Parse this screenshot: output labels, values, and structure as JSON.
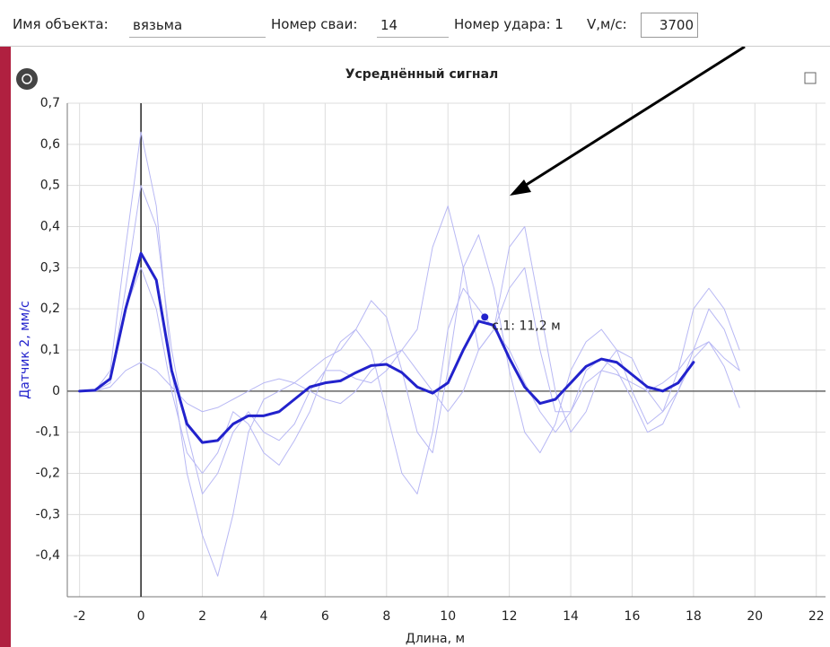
{
  "form": {
    "object_label": "Имя объекта:",
    "object_value": "вязьма",
    "pile_label": "Номер сваи:",
    "pile_value": "14",
    "strike_label": "Номер удара: 1",
    "speed_label": "V,м/с:",
    "speed_value": "3700"
  },
  "chart_data": {
    "type": "line",
    "title": "Усреднённый сигнал",
    "xlabel": "Длина, м",
    "ylabel": "Датчик 2, мм/с",
    "x": [
      -2,
      -1.5,
      -1,
      -0.5,
      0,
      0.5,
      1,
      1.5,
      2,
      2.5,
      3,
      3.5,
      4,
      4.5,
      5,
      5.5,
      6,
      6.5,
      7,
      7.5,
      8,
      8.5,
      9,
      9.5,
      10,
      10.5,
      11,
      11.5,
      12,
      12.5,
      13,
      13.5,
      14,
      14.5,
      15,
      15.5,
      16,
      16.5,
      17,
      17.5,
      18,
      18.5,
      19,
      19.5
    ],
    "series": [
      {
        "color": "#b8b8f4",
        "width": 1,
        "values": [
          0,
          0,
          0.05,
          0.35,
          0.63,
          0.45,
          0.05,
          -0.2,
          -0.35,
          -0.45,
          -0.3,
          -0.1,
          -0.02,
          0,
          0.02,
          0.05,
          0.08,
          0.1,
          0.15,
          0.22,
          0.18,
          0.05,
          -0.1,
          -0.15,
          0.05,
          0.3,
          0.38,
          0.25,
          0.05,
          -0.1,
          -0.15,
          -0.08,
          0.05,
          0.12,
          0.15,
          0.1,
          0,
          -0.08,
          -0.05,
          0.05,
          0.2,
          0.25,
          0.2,
          0.1
        ]
      },
      {
        "color": "#b8b8f4",
        "width": 1,
        "values": [
          0,
          0,
          0.02,
          0.25,
          0.5,
          0.4,
          0.1,
          -0.1,
          -0.25,
          -0.2,
          -0.1,
          -0.05,
          -0.1,
          -0.12,
          -0.08,
          0,
          0.05,
          0.05,
          0.03,
          0.02,
          0.05,
          0.1,
          0.15,
          0.35,
          0.45,
          0.3,
          0.1,
          0.15,
          0.35,
          0.4,
          0.2,
          0,
          -0.1,
          -0.05,
          0.05,
          0.1,
          0.08,
          0,
          -0.05,
          0,
          0.1,
          0.2,
          0.15,
          0.05
        ]
      },
      {
        "color": "#b8b8f4",
        "width": 1,
        "values": [
          0,
          0,
          0.01,
          0.05,
          0.07,
          0.05,
          0.01,
          -0.03,
          -0.05,
          -0.04,
          -0.02,
          0,
          0.02,
          0.03,
          0.02,
          0,
          -0.02,
          -0.03,
          0,
          0.05,
          0.08,
          0.1,
          0.05,
          0,
          -0.05,
          0,
          0.1,
          0.15,
          0.1,
          0.02,
          -0.05,
          -0.1,
          -0.05,
          0.02,
          0.05,
          0.04,
          0.02,
          0,
          0.02,
          0.05,
          0.1,
          0.12,
          0.08,
          0.05
        ]
      },
      {
        "color": "#b8b8f4",
        "width": 1,
        "values": [
          0,
          0,
          0.03,
          0.2,
          0.3,
          0.2,
          0,
          -0.15,
          -0.2,
          -0.15,
          -0.05,
          -0.08,
          -0.15,
          -0.18,
          -0.12,
          -0.05,
          0.05,
          0.12,
          0.15,
          0.1,
          -0.05,
          -0.2,
          -0.25,
          -0.1,
          0.15,
          0.25,
          0.2,
          0.15,
          0.25,
          0.3,
          0.1,
          -0.05,
          -0.05,
          0.05,
          0.08,
          0.05,
          -0.02,
          -0.1,
          -0.08,
          0,
          0.08,
          0.12,
          0.06,
          -0.04
        ]
      },
      {
        "color": "#2222cc",
        "width": 3,
        "values": [
          0,
          0.002,
          0.03,
          0.2,
          0.335,
          0.27,
          0.05,
          -0.08,
          -0.125,
          -0.12,
          -0.08,
          -0.06,
          -0.06,
          -0.05,
          -0.02,
          0.01,
          0.02,
          0.025,
          0.045,
          0.062,
          0.065,
          0.045,
          0.01,
          -0.005,
          0.02,
          0.1,
          0.17,
          0.16,
          0.08,
          0.01,
          -0.03,
          -0.02,
          0.02,
          0.06,
          0.078,
          0.07,
          0.04,
          0.01,
          0,
          0.02,
          0.07,
          null,
          null,
          null
        ]
      }
    ],
    "annotation": {
      "text": "с.1: 11,2 м",
      "x": 11.2,
      "y": 0.18
    },
    "xlim": [
      -2.4,
      22.3
    ],
    "xticks": [
      -2,
      0,
      2,
      4,
      6,
      8,
      10,
      12,
      14,
      16,
      18,
      20,
      22
    ],
    "ylim": [
      -0.5,
      0.7
    ],
    "yticks": [
      {
        "value": -0.4,
        "label": "-0,4"
      },
      {
        "value": -0.3,
        "label": "-0,3"
      },
      {
        "value": -0.2,
        "label": "-0,2"
      },
      {
        "value": -0.1,
        "label": "-0,1"
      },
      0,
      {
        "value": 0.1,
        "label": "0,1"
      },
      {
        "value": 0.2,
        "label": "0,2"
      },
      {
        "value": 0.3,
        "label": "0,3"
      },
      {
        "value": 0.4,
        "label": "0,4"
      },
      {
        "value": 0.5,
        "label": "0,5"
      },
      {
        "value": 0.6,
        "label": "0,6"
      },
      {
        "value": 0.7,
        "label": "0,7"
      }
    ],
    "grid": true
  }
}
